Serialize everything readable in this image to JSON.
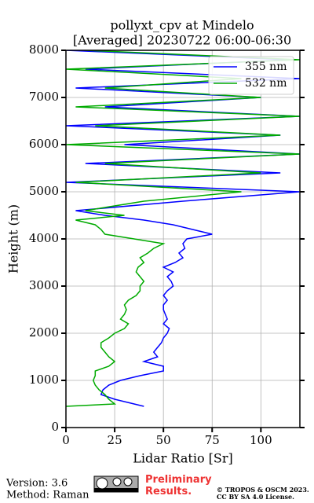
{
  "chart_data": {
    "type": "line",
    "title": [
      "pollyxt_cpv at Mindelo",
      "[Averaged] 20230722 06:00-06:30"
    ],
    "x_label": "Lidar Ratio [Sr]",
    "y_label": "Height (m)",
    "y": [
      450,
      500,
      600,
      700,
      800,
      900,
      1000,
      1100,
      1200,
      1300,
      1400,
      1500,
      1600,
      1700,
      1800,
      1900,
      2000,
      2100,
      2200,
      2300,
      2400,
      2500,
      2600,
      2700,
      2800,
      2900,
      3000,
      3100,
      3200,
      3300,
      3400,
      3500,
      3600,
      3700,
      3800,
      3900,
      4000,
      4100,
      4200,
      4300,
      4400,
      4500,
      4600,
      4800,
      5000,
      5200,
      5400,
      5600,
      5800,
      6000,
      6200,
      6400,
      6600,
      6800,
      7000,
      7200,
      7400,
      7600,
      7800,
      8000
    ],
    "series": [
      {
        "name": "355 nm",
        "color": "#0000ff",
        "values": [
          40,
          35,
          25,
          18,
          19,
          22,
          28,
          38,
          50,
          50,
          40,
          47,
          45,
          47,
          49,
          50,
          52,
          53,
          50,
          52,
          51,
          50,
          50,
          52,
          50,
          52,
          55,
          54,
          52,
          55,
          50,
          56,
          60,
          58,
          61,
          60,
          62,
          75,
          65,
          55,
          40,
          20,
          5,
          60,
          120,
          0,
          110,
          10,
          120,
          30,
          110,
          0,
          120,
          20,
          100,
          5,
          120,
          10,
          115,
          0
        ]
      },
      {
        "name": "532 nm",
        "color": "#00aa00",
        "values": [
          0,
          25,
          22,
          20,
          17,
          15,
          14,
          15,
          15,
          22,
          25,
          22,
          20,
          18,
          18,
          22,
          25,
          30,
          32,
          28,
          30,
          31,
          30,
          32,
          36,
          38,
          38,
          40,
          38,
          36,
          37,
          40,
          38,
          42,
          45,
          50,
          35,
          20,
          18,
          15,
          5,
          30,
          10,
          40,
          90,
          5,
          100,
          20,
          120,
          0,
          110,
          15,
          120,
          5,
          100,
          20,
          90,
          0,
          120,
          10
        ]
      }
    ],
    "xlim": [
      0,
      120
    ],
    "xticks": [
      0,
      25,
      50,
      75,
      100
    ],
    "ylim": [
      0,
      8000
    ],
    "yticks": [
      0,
      1000,
      2000,
      3000,
      4000,
      5000,
      6000,
      7000,
      8000
    ],
    "grid": true,
    "legend": "upper right",
    "footer": {
      "version": "Version: 3.6",
      "method": "Method: Raman",
      "status": "Preliminary Results.",
      "copyright": [
        "© TROPOS & OSCM 2023.",
        "CC BY SA 4.0 License."
      ]
    }
  }
}
